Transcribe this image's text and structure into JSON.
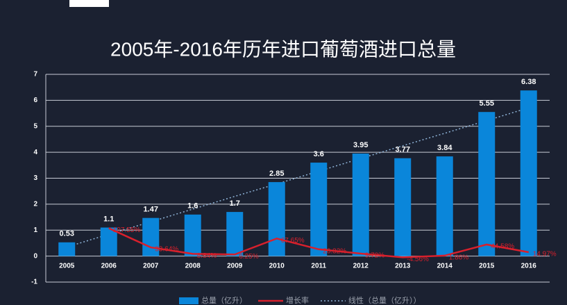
{
  "chart_data": {
    "type": "bar",
    "title": "2005年-2016年历年进口葡萄酒进口总量",
    "categories": [
      "2005",
      "2006",
      "2007",
      "2008",
      "2009",
      "2010",
      "2011",
      "2012",
      "2013",
      "2014",
      "2015",
      "2016"
    ],
    "series": [
      {
        "name": "总量（亿升）",
        "type": "bar",
        "color": "#0a86da",
        "values": [
          0.53,
          1.1,
          1.47,
          1.6,
          1.7,
          2.85,
          3.6,
          3.95,
          3.77,
          3.84,
          5.55,
          6.38
        ]
      },
      {
        "name": "增长率",
        "type": "line",
        "color": "#d8202c",
        "values": [
          null,
          1.0755,
          0.3364,
          0.0884,
          0.0625,
          0.6765,
          0.2632,
          0.0972,
          -0.0456,
          0.0186,
          0.4458,
          0.1497
        ],
        "value_labels": [
          null,
          "107.55%",
          "33.64%",
          "8.84%",
          "6.25%",
          "67.65%",
          "26.32%",
          "9.72%",
          "-4.56%",
          "1.86%",
          "44.58%",
          "14.97%"
        ]
      },
      {
        "name": "线性（总量（亿升））",
        "type": "trend",
        "color": "#8fb4d8",
        "values": [
          0.35,
          0.84,
          1.32,
          1.81,
          2.3,
          2.78,
          3.27,
          3.76,
          4.25,
          4.73,
          5.22,
          5.71
        ]
      }
    ],
    "ylim": [
      -1,
      7
    ],
    "yticks": [
      -1,
      0,
      1,
      2,
      3,
      4,
      5,
      6,
      7
    ],
    "grid": true,
    "legend": "bottom"
  }
}
